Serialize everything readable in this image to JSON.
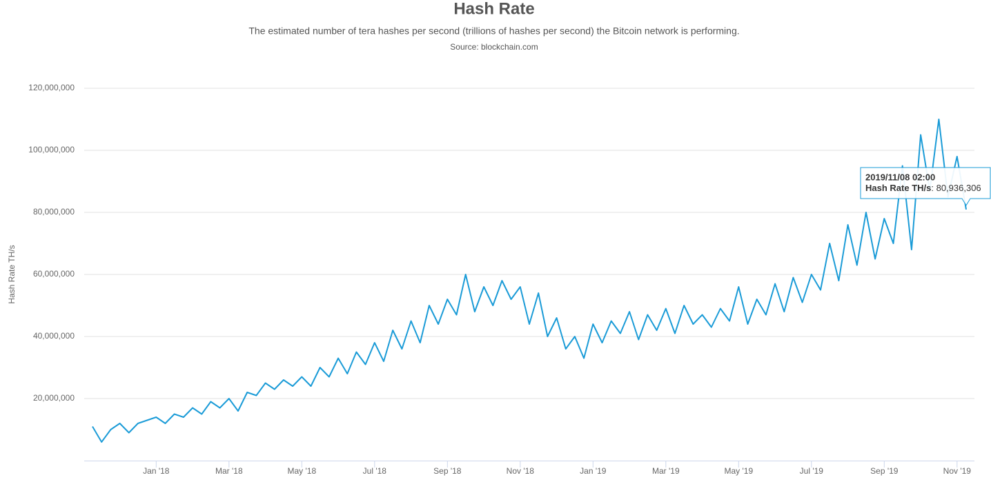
{
  "chart_data": {
    "type": "line",
    "title": "Hash Rate",
    "subtitle": "The estimated number of tera hashes per second (trillions of hashes per second) the Bitcoin network is performing.",
    "source": "Source: blockchain.com",
    "ylabel": "Hash Rate TH/s",
    "categories": [
      null,
      null,
      null,
      null,
      null,
      null,
      null,
      "Jan '18",
      null,
      null,
      null,
      null,
      null,
      null,
      null,
      "Mar '18",
      null,
      null,
      null,
      null,
      null,
      null,
      null,
      "May '18",
      null,
      null,
      null,
      null,
      null,
      null,
      null,
      "Jul '18",
      null,
      null,
      null,
      null,
      null,
      null,
      null,
      "Sep '18",
      null,
      null,
      null,
      null,
      null,
      null,
      null,
      "Nov '18",
      null,
      null,
      null,
      null,
      null,
      null,
      null,
      "Jan '19",
      null,
      null,
      null,
      null,
      null,
      null,
      null,
      "Mar '19",
      null,
      null,
      null,
      null,
      null,
      null,
      null,
      "May '19",
      null,
      null,
      null,
      null,
      null,
      null,
      null,
      "Jul '19",
      null,
      null,
      null,
      null,
      null,
      null,
      null,
      "Sep '19",
      null,
      null,
      null,
      null,
      null,
      null,
      null,
      "Nov '19",
      null
    ],
    "series": [
      {
        "name": "Hash Rate TH/s",
        "color": "#1a9bd7",
        "values": [
          11000000,
          6000000,
          10000000,
          12000000,
          9000000,
          12000000,
          13000000,
          14000000,
          12000000,
          15000000,
          14000000,
          17000000,
          15000000,
          19000000,
          17000000,
          20000000,
          16000000,
          22000000,
          21000000,
          25000000,
          23000000,
          26000000,
          24000000,
          27000000,
          24000000,
          30000000,
          27000000,
          33000000,
          28000000,
          35000000,
          31000000,
          38000000,
          32000000,
          42000000,
          36000000,
          45000000,
          38000000,
          50000000,
          44000000,
          52000000,
          47000000,
          60000000,
          48000000,
          56000000,
          50000000,
          58000000,
          52000000,
          56000000,
          44000000,
          54000000,
          40000000,
          46000000,
          36000000,
          40000000,
          33000000,
          44000000,
          38000000,
          45000000,
          41000000,
          48000000,
          39000000,
          47000000,
          42000000,
          49000000,
          41000000,
          50000000,
          44000000,
          47000000,
          43000000,
          49000000,
          45000000,
          56000000,
          44000000,
          52000000,
          47000000,
          57000000,
          48000000,
          59000000,
          51000000,
          60000000,
          55000000,
          70000000,
          58000000,
          76000000,
          63000000,
          80000000,
          65000000,
          78000000,
          70000000,
          95000000,
          68000000,
          105000000,
          87000000,
          110000000,
          85000000,
          98000000,
          80936306
        ]
      }
    ],
    "ylim": [
      0,
      120000000
    ],
    "yticks": [
      {
        "value": 20000000,
        "label": "20,000,000"
      },
      {
        "value": 40000000,
        "label": "40,000,000"
      },
      {
        "value": 60000000,
        "label": "60,000,000"
      },
      {
        "value": 80000000,
        "label": "80,000,000"
      },
      {
        "value": 100000000,
        "label": "100,000,000"
      },
      {
        "value": 120000000,
        "label": "120,000,000"
      }
    ],
    "grid": true,
    "tooltip": {
      "x": "2019/11/08 02:00",
      "label": "Hash Rate TH/s",
      "value": 80936306,
      "value_label": ": 80,936,306"
    }
  }
}
